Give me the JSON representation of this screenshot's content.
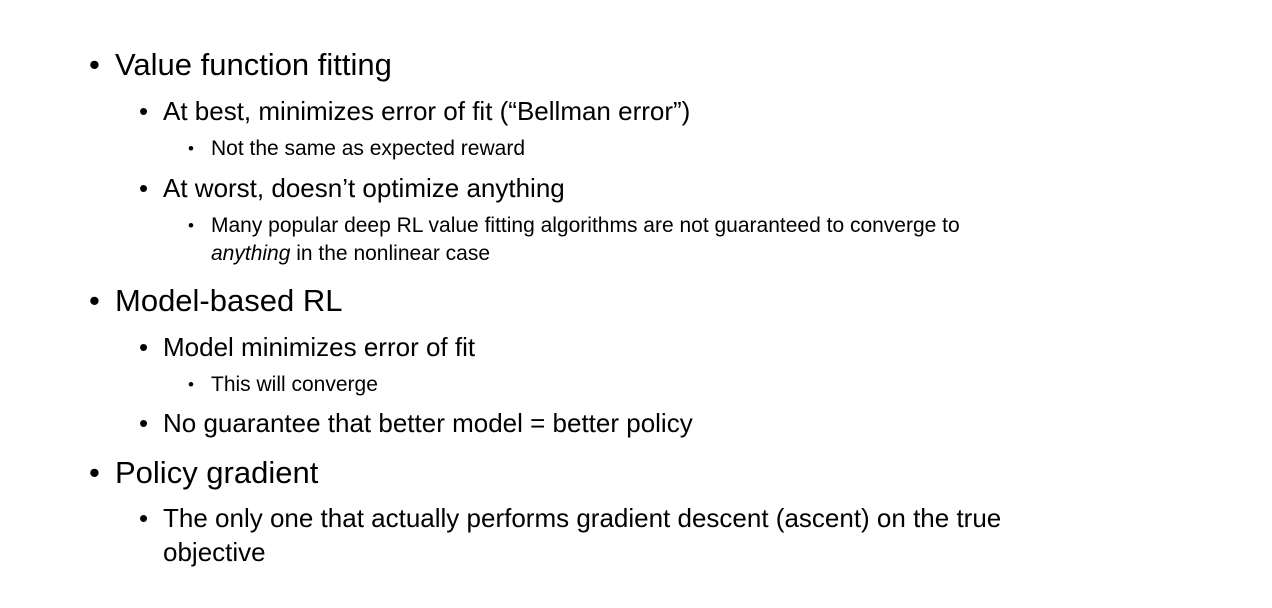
{
  "bullets": {
    "value_fitting": {
      "title": "Value function fitting",
      "best": "At best, minimizes error of fit (“Bellman error”)",
      "best_sub": "Not the same as expected reward",
      "worst": "At worst, doesn’t optimize anything",
      "worst_sub_line1": "Many popular deep RL value fitting algorithms are not guaranteed to converge to",
      "worst_sub_italic": "anything",
      "worst_sub_line2_rest": " in the nonlinear case"
    },
    "model_based": {
      "title": "Model-based RL",
      "model": "Model minimizes error of fit",
      "model_sub": "This will converge",
      "no_guarantee": "No guarantee that better model = better policy"
    },
    "policy_gradient": {
      "title": "Policy gradient",
      "only_line1": "The only one that actually performs gradient descent (ascent) on the true",
      "only_line2": "objective"
    }
  },
  "bullet_glyph": "•"
}
